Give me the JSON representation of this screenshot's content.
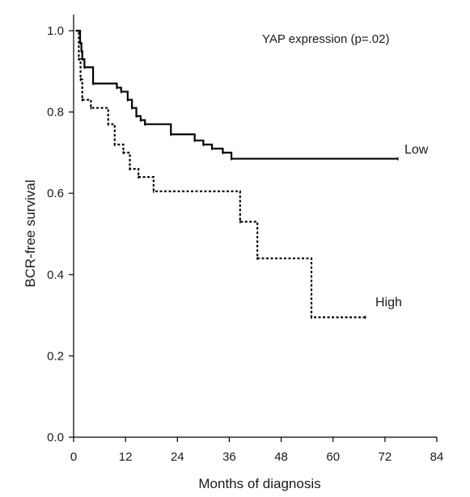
{
  "chart_data": {
    "type": "line",
    "title": "",
    "annotation": "YAP expression (p=.02)",
    "xlabel": "Months of diagnosis",
    "ylabel": "BCR-free survival",
    "xlim": [
      0,
      84
    ],
    "ylim": [
      0,
      1.0
    ],
    "x_ticks": [
      0,
      12,
      24,
      36,
      48,
      60,
      72,
      84
    ],
    "x_tick_labels": [
      "0",
      "12",
      "24",
      "36",
      "48",
      "60",
      "72",
      "84"
    ],
    "y_ticks": [
      0,
      0.2,
      0.4,
      0.6,
      0.8,
      1.0
    ],
    "y_tick_labels": [
      "0.0",
      "0.2",
      "0.4",
      "0.6",
      "0.8",
      "1.0"
    ],
    "grid": false,
    "series": [
      {
        "name": "Low",
        "style": "solid",
        "color": "#000000",
        "steps": [
          [
            0.5,
            1.0
          ],
          [
            1.5,
            0.97
          ],
          [
            1.8,
            0.95
          ],
          [
            2.0,
            0.93
          ],
          [
            2.5,
            0.91
          ],
          [
            4.5,
            0.87
          ],
          [
            10.0,
            0.86
          ],
          [
            11.0,
            0.85
          ],
          [
            12.5,
            0.83
          ],
          [
            13.5,
            0.81
          ],
          [
            14.5,
            0.79
          ],
          [
            15.5,
            0.78
          ],
          [
            16.5,
            0.77
          ],
          [
            22.5,
            0.745
          ],
          [
            28.0,
            0.73
          ],
          [
            30.0,
            0.72
          ],
          [
            32.0,
            0.71
          ],
          [
            34.5,
            0.7
          ],
          [
            36.5,
            0.685
          ],
          [
            75.0,
            0.685
          ]
        ]
      },
      {
        "name": "High",
        "style": "dashed",
        "color": "#000000",
        "steps": [
          [
            0.5,
            1.0
          ],
          [
            1.2,
            0.93
          ],
          [
            1.6,
            0.88
          ],
          [
            2.0,
            0.83
          ],
          [
            4.0,
            0.81
          ],
          [
            8.0,
            0.77
          ],
          [
            9.5,
            0.72
          ],
          [
            11.5,
            0.7
          ],
          [
            13.0,
            0.66
          ],
          [
            15.0,
            0.64
          ],
          [
            18.5,
            0.605
          ],
          [
            38.5,
            0.53
          ],
          [
            42.5,
            0.44
          ],
          [
            55.0,
            0.295
          ],
          [
            67.5,
            0.295
          ]
        ]
      }
    ]
  }
}
